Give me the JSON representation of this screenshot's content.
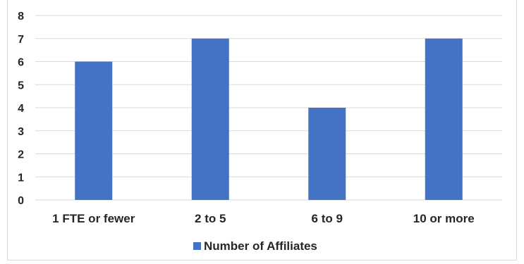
{
  "chart_data": {
    "type": "bar",
    "categories": [
      "1 FTE or fewer",
      "2 to 5",
      "6 to 9",
      "10 or more"
    ],
    "series": [
      {
        "name": "Number of Affiliates",
        "values": [
          6,
          7,
          4,
          7
        ],
        "color": "#4472c4"
      }
    ],
    "ylim": [
      0,
      8
    ],
    "yticks": [
      0,
      1,
      2,
      3,
      4,
      5,
      6,
      7,
      8
    ],
    "grid": true,
    "legend_position": "bottom",
    "gridline_color": "#d9d9d9"
  }
}
